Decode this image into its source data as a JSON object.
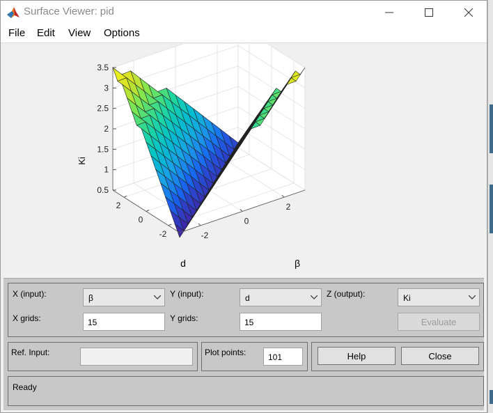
{
  "window": {
    "title": "Surface Viewer: pid",
    "icon": "matlab-membrane-icon",
    "controls": {
      "minimize": "minimize-icon",
      "maximize": "maximize-icon",
      "close": "close-icon"
    }
  },
  "menu": [
    {
      "id": "file",
      "label": "File"
    },
    {
      "id": "edit",
      "label": "Edit"
    },
    {
      "id": "view",
      "label": "View"
    },
    {
      "id": "options",
      "label": "Options"
    }
  ],
  "chart_data": {
    "type": "surface3d",
    "zlabel": "Ki",
    "xlabel": "β",
    "ylabel": "d",
    "zlim": [
      0.5,
      3.5
    ],
    "z_ticks": [
      "0.5",
      "1",
      "1.5",
      "2",
      "2.5",
      "3",
      "3.5"
    ],
    "x_ticks": [
      "-2",
      "0",
      "2"
    ],
    "y_ticks": [
      "2",
      "0",
      "-2"
    ],
    "x_range": [
      -3,
      3
    ],
    "y_range": [
      -3,
      3
    ],
    "grid": true,
    "colormap": "parula",
    "grid_points": 15,
    "surface_description_values": {
      "corner_d_pos_beta_neg": 3.5,
      "corner_d_neg_beta_pos": 3.5,
      "corner_d_pos_beta_pos": 0.6,
      "corner_d_neg_beta_neg": 0.6,
      "minimum_near_origin": 0.5
    }
  },
  "controls": {
    "x_input_label": "X (input):",
    "x_input_value": "β",
    "y_input_label": "Y (input):",
    "y_input_value": "d",
    "z_output_label": "Z (output):",
    "z_output_value": "Ki",
    "x_grids_label": "X grids:",
    "x_grids_value": "15",
    "y_grids_label": "Y grids:",
    "y_grids_value": "15",
    "evaluate_label": "Evaluate",
    "ref_input_label": "Ref. Input:",
    "ref_input_value": "",
    "plot_points_label": "Plot points:",
    "plot_points_value": "101",
    "help_label": "Help",
    "close_label": "Close"
  },
  "status": {
    "text": "Ready"
  }
}
